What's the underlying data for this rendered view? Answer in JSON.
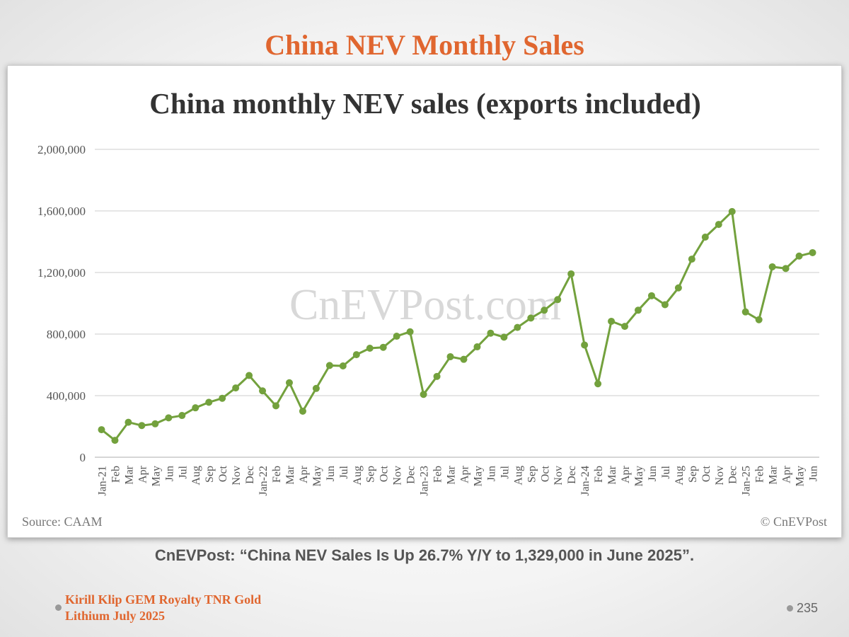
{
  "slide": {
    "title": "China NEV Monthly Sales",
    "caption": "CnEVPost: “China NEV Sales Is Up 26.7% Y/Y to 1,329,000 in June 2025”.",
    "footer_line1": "Kirill Klip GEM Royalty TNR Gold",
    "footer_line2": "Lithium July 2025",
    "page_number": "235"
  },
  "chart_data": {
    "type": "line",
    "title": "China monthly NEV sales (exports included)",
    "source": "Source: CAAM",
    "credit": "© CnEVPost",
    "watermark": "CnEVPost.com",
    "ylim": [
      0,
      2000000
    ],
    "yticks": [
      0,
      400000,
      800000,
      1200000,
      1600000,
      2000000
    ],
    "ytick_labels": [
      "0",
      "400,000",
      "800,000",
      "1,200,000",
      "1,600,000",
      "2,000,000"
    ],
    "grid": true,
    "line_color": "#73a13d",
    "categories": [
      "Jan-21",
      "Feb",
      "Mar",
      "Apr",
      "May",
      "Jun",
      "Jul",
      "Aug",
      "Sep",
      "Oct",
      "Nov",
      "Dec",
      "Jan-22",
      "Feb",
      "Mar",
      "Apr",
      "May",
      "Jun",
      "Jul",
      "Aug",
      "Sep",
      "Oct",
      "Nov",
      "Dec",
      "Jan-23",
      "Feb",
      "Mar",
      "Apr",
      "May",
      "Jun",
      "Jul",
      "Aug",
      "Sep",
      "Oct",
      "Nov",
      "Dec",
      "Jan-24",
      "Feb",
      "Mar",
      "Apr",
      "May",
      "Jun",
      "Jul",
      "Aug",
      "Sep",
      "Oct",
      "Nov",
      "Dec",
      "Jan-25",
      "Feb",
      "Mar",
      "Apr",
      "May",
      "Jun"
    ],
    "values": [
      179000,
      110000,
      227000,
      206000,
      217000,
      256000,
      271000,
      321000,
      357000,
      383000,
      450000,
      531000,
      431000,
      334000,
      484000,
      299000,
      447000,
      596000,
      593000,
      666000,
      708000,
      714000,
      786000,
      815000,
      408000,
      525000,
      653000,
      636000,
      717000,
      806000,
      780000,
      843000,
      904000,
      955000,
      1024000,
      1191000,
      729000,
      477000,
      883000,
      850000,
      955000,
      1049000,
      991000,
      1100000,
      1287000,
      1430000,
      1512000,
      1596000,
      944000,
      893000,
      1237000,
      1226000,
      1307000,
      1329000
    ]
  }
}
